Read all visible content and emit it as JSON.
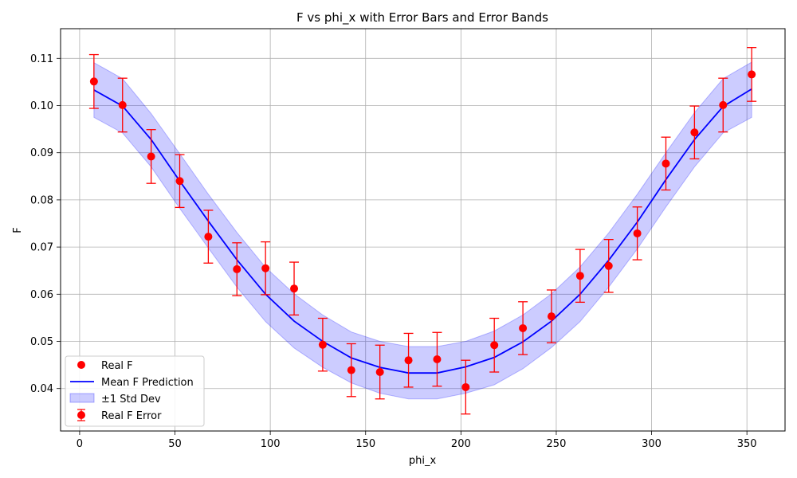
{
  "chart_data": {
    "type": "line",
    "title": "F vs phi_x with Error Bars and Error Bands",
    "xlabel": "phi_x",
    "ylabel": "F",
    "xlim": [
      -10,
      370
    ],
    "ylim": [
      0.031,
      0.1163
    ],
    "xticks": [
      0,
      50,
      100,
      150,
      200,
      250,
      300,
      350
    ],
    "yticks": [
      0.04,
      0.05,
      0.06,
      0.07,
      0.08,
      0.09,
      0.1,
      0.11
    ],
    "xtick_labels": [
      "0",
      "50",
      "100",
      "150",
      "200",
      "250",
      "300",
      "350"
    ],
    "ytick_labels": [
      "0.04",
      "0.05",
      "0.06",
      "0.07",
      "0.08",
      "0.09",
      "0.10",
      "0.11"
    ],
    "grid": true,
    "legend_position": "lower-left",
    "colors": {
      "real": "#ff0000",
      "mean": "#0000ff",
      "band": "#0000ff"
    },
    "x": [
      7.5,
      22.5,
      37.5,
      52.5,
      67.5,
      82.5,
      97.5,
      112.5,
      127.5,
      142.5,
      157.5,
      172.5,
      187.5,
      202.5,
      217.5,
      232.5,
      247.5,
      262.5,
      277.5,
      292.5,
      307.5,
      322.5,
      337.5,
      352.5
    ],
    "series": [
      {
        "name": "Real F",
        "kind": "scatter-errorbar",
        "error_label": "Real F Error",
        "values": [
          0.1051,
          0.1001,
          0.0892,
          0.084,
          0.0722,
          0.0653,
          0.0655,
          0.0612,
          0.0493,
          0.0439,
          0.0435,
          0.046,
          0.0462,
          0.0403,
          0.0492,
          0.0528,
          0.0553,
          0.0639,
          0.066,
          0.0729,
          0.0877,
          0.0943,
          0.1001,
          0.1066
        ],
        "errors": [
          0.0057,
          0.0057,
          0.0057,
          0.0056,
          0.0056,
          0.0056,
          0.0056,
          0.0056,
          0.0056,
          0.0056,
          0.0057,
          0.0057,
          0.0057,
          0.0057,
          0.0057,
          0.0056,
          0.0056,
          0.0056,
          0.0056,
          0.0056,
          0.0056,
          0.0056,
          0.0057,
          0.0057
        ]
      },
      {
        "name": "Mean F Prediction",
        "kind": "line",
        "values": [
          0.1033,
          0.0999,
          0.0928,
          0.084,
          0.0755,
          0.0673,
          0.06,
          0.0543,
          0.05,
          0.0465,
          0.0445,
          0.0433,
          0.0433,
          0.0446,
          0.0466,
          0.0499,
          0.0543,
          0.06,
          0.0672,
          0.0753,
          0.0843,
          0.0928,
          0.0998,
          0.1035
        ]
      },
      {
        "name": "±1 Std Dev",
        "kind": "band",
        "lower": [
          0.0975,
          0.0942,
          0.087,
          0.0782,
          0.0698,
          0.0615,
          0.0542,
          0.0486,
          0.0445,
          0.0412,
          0.039,
          0.0378,
          0.0378,
          0.039,
          0.0408,
          0.0442,
          0.0487,
          0.0542,
          0.0615,
          0.0696,
          0.0785,
          0.087,
          0.0942,
          0.0975
        ],
        "upper": [
          0.1091,
          0.1057,
          0.0983,
          0.0898,
          0.0812,
          0.0731,
          0.0657,
          0.0601,
          0.0556,
          0.052,
          0.05,
          0.0489,
          0.0489,
          0.05,
          0.0522,
          0.0556,
          0.0601,
          0.0658,
          0.073,
          0.0812,
          0.09,
          0.0985,
          0.1057,
          0.1092
        ]
      }
    ]
  }
}
